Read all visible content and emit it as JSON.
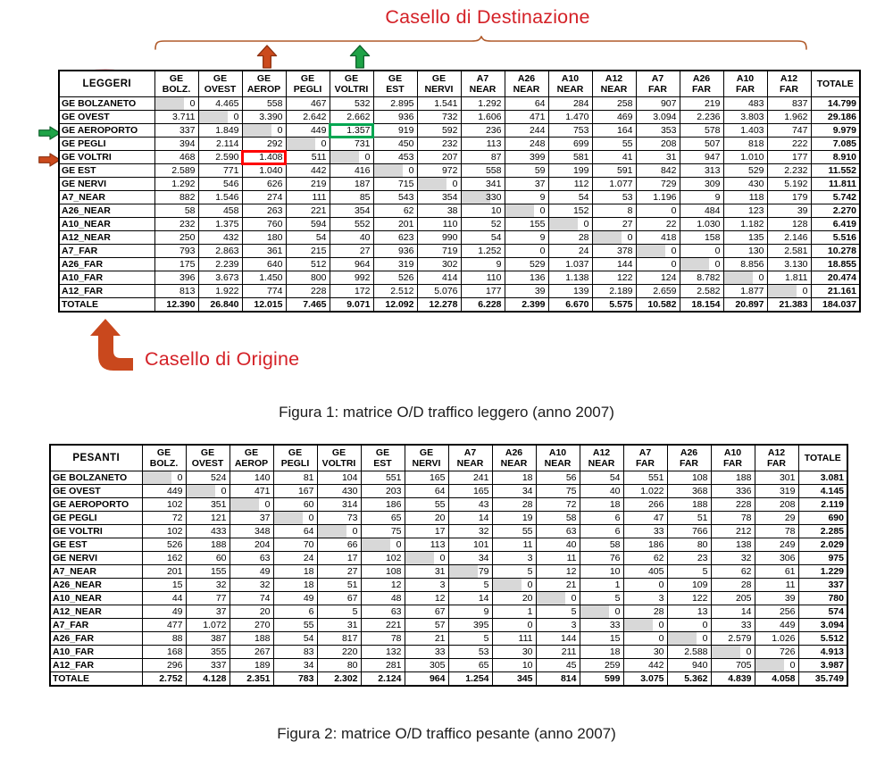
{
  "annotations": {
    "destination_label": "Casello di Destinazione",
    "origin_label": "Casello di Origine",
    "label_color": "#d42127",
    "brace_color": "#b05a2a",
    "orange_arrow_color": "#cb4a1d",
    "green_arrow_color": "#1ea347",
    "highlight_red_color": "#fe0000",
    "highlight_green_color": "#00a651",
    "diagonal_shade_color": "#d8d8d8",
    "icons": [
      "brace-icon",
      "arrow-up-orange-icon",
      "arrow-up-green-icon",
      "arrow-right-green-icon",
      "arrow-right-orange-icon",
      "bent-arrow-icon",
      "ellipse-icon"
    ]
  },
  "figure1": {
    "corner_label": "LEGGERI",
    "caption": "Figura 1: matrice O/D traffico leggero (anno 2007)",
    "columns": [
      [
        "GE",
        "BOLZ."
      ],
      [
        "GE",
        "OVEST"
      ],
      [
        "GE",
        "AEROP"
      ],
      [
        "GE",
        "PEGLI"
      ],
      [
        "GE",
        "VOLTRI"
      ],
      [
        "GE",
        "EST"
      ],
      [
        "GE",
        "NERVI"
      ],
      [
        "A7",
        "NEAR"
      ],
      [
        "A26",
        "NEAR"
      ],
      [
        "A10",
        "NEAR"
      ],
      [
        "A12",
        "NEAR"
      ],
      [
        "A7",
        "FAR"
      ],
      [
        "A26",
        "FAR"
      ],
      [
        "A10",
        "FAR"
      ],
      [
        "A12",
        "FAR"
      ],
      [
        "TOTALE"
      ]
    ],
    "row_labels": [
      "GE BOLZANETO",
      "GE OVEST",
      "GE AEROPORTO",
      "GE PEGLI",
      "GE VOLTRI",
      "GE EST",
      "GE NERVI",
      "A7_NEAR",
      "A26_NEAR",
      "A10_NEAR",
      "A12_NEAR",
      "A7_FAR",
      "A26_FAR",
      "A10_FAR",
      "A12_FAR",
      "TOTALE"
    ],
    "rows": [
      [
        "0",
        "4.465",
        "558",
        "467",
        "532",
        "2.895",
        "1.541",
        "1.292",
        "64",
        "284",
        "258",
        "907",
        "219",
        "483",
        "837",
        "14.799"
      ],
      [
        "3.711",
        "0",
        "3.390",
        "2.642",
        "2.662",
        "936",
        "732",
        "1.606",
        "471",
        "1.470",
        "469",
        "3.094",
        "2.236",
        "3.803",
        "1.962",
        "29.186"
      ],
      [
        "337",
        "1.849",
        "0",
        "449",
        "1.357",
        "919",
        "592",
        "236",
        "244",
        "753",
        "164",
        "353",
        "578",
        "1.403",
        "747",
        "9.979"
      ],
      [
        "394",
        "2.114",
        "292",
        "0",
        "731",
        "450",
        "232",
        "113",
        "248",
        "699",
        "55",
        "208",
        "507",
        "818",
        "222",
        "7.085"
      ],
      [
        "468",
        "2.590",
        "1.408",
        "511",
        "0",
        "453",
        "207",
        "87",
        "399",
        "581",
        "41",
        "31",
        "947",
        "1.010",
        "177",
        "8.910"
      ],
      [
        "2.589",
        "771",
        "1.040",
        "442",
        "416",
        "0",
        "972",
        "558",
        "59",
        "199",
        "591",
        "842",
        "313",
        "529",
        "2.232",
        "11.552"
      ],
      [
        "1.292",
        "546",
        "626",
        "219",
        "187",
        "715",
        "0",
        "341",
        "37",
        "112",
        "1.077",
        "729",
        "309",
        "430",
        "5.192",
        "11.811"
      ],
      [
        "882",
        "1.546",
        "274",
        "111",
        "85",
        "543",
        "354",
        "330",
        "9",
        "54",
        "53",
        "1.196",
        "9",
        "118",
        "179",
        "5.742"
      ],
      [
        "58",
        "458",
        "263",
        "221",
        "354",
        "62",
        "38",
        "10",
        "0",
        "152",
        "8",
        "0",
        "484",
        "123",
        "39",
        "2.270"
      ],
      [
        "232",
        "1.375",
        "760",
        "594",
        "552",
        "201",
        "110",
        "52",
        "155",
        "0",
        "27",
        "22",
        "1.030",
        "1.182",
        "128",
        "6.419"
      ],
      [
        "250",
        "432",
        "180",
        "54",
        "40",
        "623",
        "990",
        "54",
        "9",
        "28",
        "0",
        "418",
        "158",
        "135",
        "2.146",
        "5.516"
      ],
      [
        "793",
        "2.863",
        "361",
        "215",
        "27",
        "936",
        "719",
        "1.252",
        "0",
        "24",
        "378",
        "0",
        "0",
        "130",
        "2.581",
        "10.278"
      ],
      [
        "175",
        "2.239",
        "640",
        "512",
        "964",
        "319",
        "302",
        "9",
        "529",
        "1.037",
        "144",
        "0",
        "0",
        "8.856",
        "3.130",
        "18.855"
      ],
      [
        "396",
        "3.673",
        "1.450",
        "800",
        "992",
        "526",
        "414",
        "110",
        "136",
        "1.138",
        "122",
        "124",
        "8.782",
        "0",
        "1.811",
        "20.474"
      ],
      [
        "813",
        "1.922",
        "774",
        "228",
        "172",
        "2.512",
        "5.076",
        "177",
        "39",
        "139",
        "2.189",
        "2.659",
        "2.582",
        "1.877",
        "0",
        "21.161"
      ],
      [
        "12.390",
        "26.840",
        "12.015",
        "7.465",
        "9.071",
        "12.092",
        "12.278",
        "6.228",
        "2.399",
        "6.670",
        "5.575",
        "10.582",
        "18.154",
        "20.897",
        "21.383",
        "184.037"
      ]
    ],
    "highlights": [
      {
        "row": 4,
        "col": 2,
        "color": "red",
        "value": "1.408"
      },
      {
        "row": 2,
        "col": 4,
        "color": "green",
        "value": "1.357"
      }
    ]
  },
  "figure2": {
    "corner_label": "PESANTI",
    "caption": "Figura 2: matrice O/D traffico pesante (anno 2007)",
    "columns": [
      [
        "GE",
        "BOLZ."
      ],
      [
        "GE",
        "OVEST"
      ],
      [
        "GE",
        "AEROP"
      ],
      [
        "GE",
        "PEGLI"
      ],
      [
        "GE",
        "VOLTRI"
      ],
      [
        "GE",
        "EST"
      ],
      [
        "GE",
        "NERVI"
      ],
      [
        "A7",
        "NEAR"
      ],
      [
        "A26",
        "NEAR"
      ],
      [
        "A10",
        "NEAR"
      ],
      [
        "A12",
        "NEAR"
      ],
      [
        "A7",
        "FAR"
      ],
      [
        "A26",
        "FAR"
      ],
      [
        "A10",
        "FAR"
      ],
      [
        "A12",
        "FAR"
      ],
      [
        "TOTALE"
      ]
    ],
    "row_labels": [
      "GE BOLZANETO",
      "GE OVEST",
      "GE AEROPORTO",
      "GE PEGLI",
      "GE VOLTRI",
      "GE EST",
      "GE NERVI",
      "A7_NEAR",
      "A26_NEAR",
      "A10_NEAR",
      "A12_NEAR",
      "A7_FAR",
      "A26_FAR",
      "A10_FAR",
      "A12_FAR",
      "TOTALE"
    ],
    "rows": [
      [
        "0",
        "524",
        "140",
        "81",
        "104",
        "551",
        "165",
        "241",
        "18",
        "56",
        "54",
        "551",
        "108",
        "188",
        "301",
        "3.081"
      ],
      [
        "449",
        "0",
        "471",
        "167",
        "430",
        "203",
        "64",
        "165",
        "34",
        "75",
        "40",
        "1.022",
        "368",
        "336",
        "319",
        "4.145"
      ],
      [
        "102",
        "351",
        "0",
        "60",
        "314",
        "186",
        "55",
        "43",
        "28",
        "72",
        "18",
        "266",
        "188",
        "228",
        "208",
        "2.119"
      ],
      [
        "72",
        "121",
        "37",
        "0",
        "73",
        "65",
        "20",
        "14",
        "19",
        "58",
        "6",
        "47",
        "51",
        "78",
        "29",
        "690"
      ],
      [
        "102",
        "433",
        "348",
        "64",
        "0",
        "75",
        "17",
        "32",
        "55",
        "63",
        "6",
        "33",
        "766",
        "212",
        "78",
        "2.285"
      ],
      [
        "526",
        "188",
        "204",
        "70",
        "66",
        "0",
        "113",
        "101",
        "11",
        "40",
        "58",
        "186",
        "80",
        "138",
        "249",
        "2.029"
      ],
      [
        "162",
        "60",
        "63",
        "24",
        "17",
        "102",
        "0",
        "34",
        "3",
        "11",
        "76",
        "62",
        "23",
        "32",
        "306",
        "975"
      ],
      [
        "201",
        "155",
        "49",
        "18",
        "27",
        "108",
        "31",
        "79",
        "5",
        "12",
        "10",
        "405",
        "5",
        "62",
        "61",
        "1.229"
      ],
      [
        "15",
        "32",
        "32",
        "18",
        "51",
        "12",
        "3",
        "5",
        "0",
        "21",
        "1",
        "0",
        "109",
        "28",
        "11",
        "337"
      ],
      [
        "44",
        "77",
        "74",
        "49",
        "67",
        "48",
        "12",
        "14",
        "20",
        "0",
        "5",
        "3",
        "122",
        "205",
        "39",
        "780"
      ],
      [
        "49",
        "37",
        "20",
        "6",
        "5",
        "63",
        "67",
        "9",
        "1",
        "5",
        "0",
        "28",
        "13",
        "14",
        "256",
        "574"
      ],
      [
        "477",
        "1.072",
        "270",
        "55",
        "31",
        "221",
        "57",
        "395",
        "0",
        "3",
        "33",
        "0",
        "0",
        "33",
        "449",
        "3.094"
      ],
      [
        "88",
        "387",
        "188",
        "54",
        "817",
        "78",
        "21",
        "5",
        "111",
        "144",
        "15",
        "0",
        "0",
        "2.579",
        "1.026",
        "5.512"
      ],
      [
        "168",
        "355",
        "267",
        "83",
        "220",
        "132",
        "33",
        "53",
        "30",
        "211",
        "18",
        "30",
        "2.588",
        "0",
        "726",
        "4.913"
      ],
      [
        "296",
        "337",
        "189",
        "34",
        "80",
        "281",
        "305",
        "65",
        "10",
        "45",
        "259",
        "442",
        "940",
        "705",
        "0",
        "3.987"
      ],
      [
        "2.752",
        "4.128",
        "2.351",
        "783",
        "2.302",
        "2.124",
        "964",
        "1.254",
        "345",
        "814",
        "599",
        "3.075",
        "5.362",
        "4.839",
        "4.058",
        "35.749"
      ]
    ],
    "highlights": []
  }
}
